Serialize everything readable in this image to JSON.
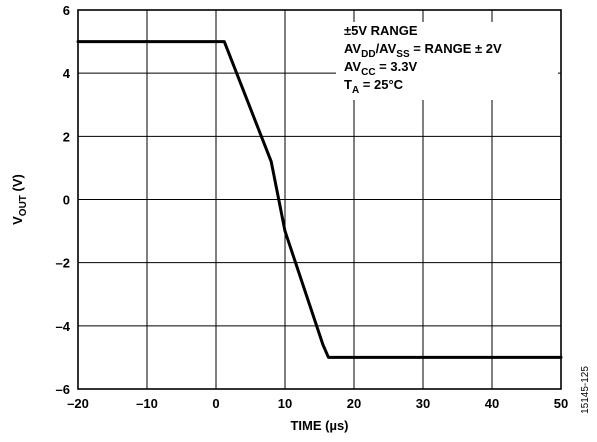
{
  "chart_data": {
    "type": "line",
    "xlabel": "TIME (µs)",
    "ylabel": {
      "main": "V",
      "sub": "OUT",
      "suffix": " (V)"
    },
    "xlim": [
      -20,
      50
    ],
    "ylim": [
      -6,
      6
    ],
    "x_ticks": [
      -20,
      -10,
      0,
      10,
      20,
      30,
      40,
      50
    ],
    "y_ticks": [
      6,
      4,
      2,
      0,
      -2,
      -4,
      -6
    ],
    "grid": true,
    "series": [
      {
        "x": [
          -20,
          0,
          1.2,
          8,
          10,
          15.5,
          16.3,
          17,
          50
        ],
        "y": [
          5.0,
          5.0,
          5.0,
          1.2,
          -1.0,
          -4.6,
          -5.0,
          -5.0,
          -5.0
        ]
      }
    ],
    "annotations": [
      {
        "parts": [
          {
            "t": "±5V RANGE"
          }
        ]
      },
      {
        "parts": [
          {
            "t": "AV"
          },
          {
            "t": "DD",
            "sub": true
          },
          {
            "t": "/AV"
          },
          {
            "t": "SS",
            "sub": true
          },
          {
            "t": " = RANGE ± 2V"
          }
        ]
      },
      {
        "parts": [
          {
            "t": "AV"
          },
          {
            "t": "CC",
            "sub": true
          },
          {
            "t": " = 3.3V"
          }
        ]
      },
      {
        "parts": [
          {
            "t": "T"
          },
          {
            "t": "A",
            "sub": true
          },
          {
            "t": " = 25°C"
          }
        ]
      }
    ]
  },
  "figure_id": "15145-125",
  "colors": {
    "line": "#000000",
    "grid": "#000000",
    "background": "#ffffff"
  }
}
